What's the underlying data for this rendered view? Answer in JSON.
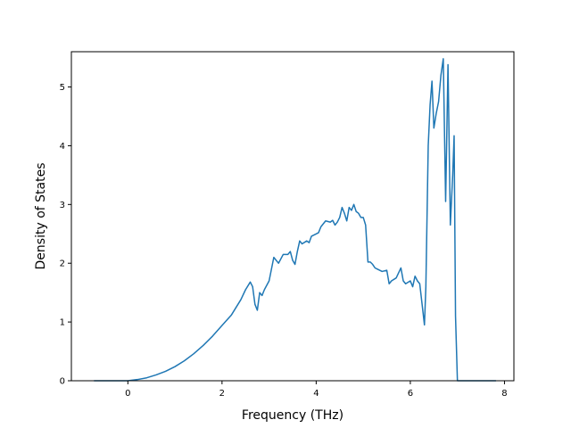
{
  "chart_data": {
    "type": "line",
    "title": "",
    "xlabel": "Frequency (THz)",
    "ylabel": "Density of States",
    "xlim": [
      -1.2,
      8.2
    ],
    "ylim": [
      0,
      5.6
    ],
    "xticks": [
      0,
      2,
      4,
      6,
      8
    ],
    "yticks": [
      0,
      1,
      2,
      3,
      4,
      5
    ],
    "grid": false,
    "legend": "none",
    "colors": {
      "line": "#1f77b4"
    },
    "series": [
      {
        "x": [
          -0.72,
          -0.5,
          -0.3,
          -0.1,
          0.0,
          0.2,
          0.4,
          0.6,
          0.8,
          1.0,
          1.2,
          1.4,
          1.6,
          1.8,
          2.0,
          2.2,
          2.4,
          2.5,
          2.6,
          2.65,
          2.7,
          2.75,
          2.8,
          2.85,
          2.9,
          3.0,
          3.1,
          3.2,
          3.3,
          3.4,
          3.45,
          3.5,
          3.55,
          3.6,
          3.65,
          3.7,
          3.8,
          3.85,
          3.9,
          4.0,
          4.05,
          4.1,
          4.2,
          4.3,
          4.35,
          4.4,
          4.45,
          4.5,
          4.55,
          4.6,
          4.65,
          4.7,
          4.75,
          4.8,
          4.85,
          4.9,
          4.95,
          5.0,
          5.05,
          5.1,
          5.15,
          5.2,
          5.25,
          5.3,
          5.4,
          5.5,
          5.55,
          5.6,
          5.7,
          5.8,
          5.85,
          5.9,
          6.0,
          6.05,
          6.1,
          6.15,
          6.2,
          6.25,
          6.3,
          6.33,
          6.38,
          6.42,
          6.46,
          6.5,
          6.55,
          6.6,
          6.65,
          6.7,
          6.75,
          6.8,
          6.85,
          6.9,
          6.93,
          6.96,
          7.0,
          7.03,
          7.06,
          7.1,
          7.15,
          7.5,
          7.82
        ],
        "y": [
          0,
          0,
          0,
          0,
          0,
          0.02,
          0.05,
          0.1,
          0.16,
          0.24,
          0.34,
          0.46,
          0.6,
          0.76,
          0.94,
          1.12,
          1.38,
          1.55,
          1.68,
          1.6,
          1.3,
          1.2,
          1.5,
          1.45,
          1.55,
          1.7,
          2.1,
          2.0,
          2.15,
          2.15,
          2.2,
          2.05,
          1.98,
          2.2,
          2.38,
          2.33,
          2.38,
          2.35,
          2.46,
          2.5,
          2.52,
          2.62,
          2.72,
          2.7,
          2.73,
          2.65,
          2.7,
          2.78,
          2.95,
          2.85,
          2.72,
          2.95,
          2.9,
          3.0,
          2.88,
          2.85,
          2.78,
          2.78,
          2.65,
          2.02,
          2.02,
          1.98,
          1.92,
          1.9,
          1.86,
          1.88,
          1.65,
          1.7,
          1.75,
          1.92,
          1.7,
          1.65,
          1.7,
          1.6,
          1.78,
          1.7,
          1.65,
          1.3,
          0.95,
          1.6,
          4.0,
          4.7,
          5.1,
          4.3,
          4.55,
          4.75,
          5.2,
          5.48,
          3.05,
          5.38,
          2.65,
          3.5,
          4.17,
          1.1,
          0,
          0,
          0,
          0,
          0,
          0,
          0
        ]
      }
    ]
  }
}
